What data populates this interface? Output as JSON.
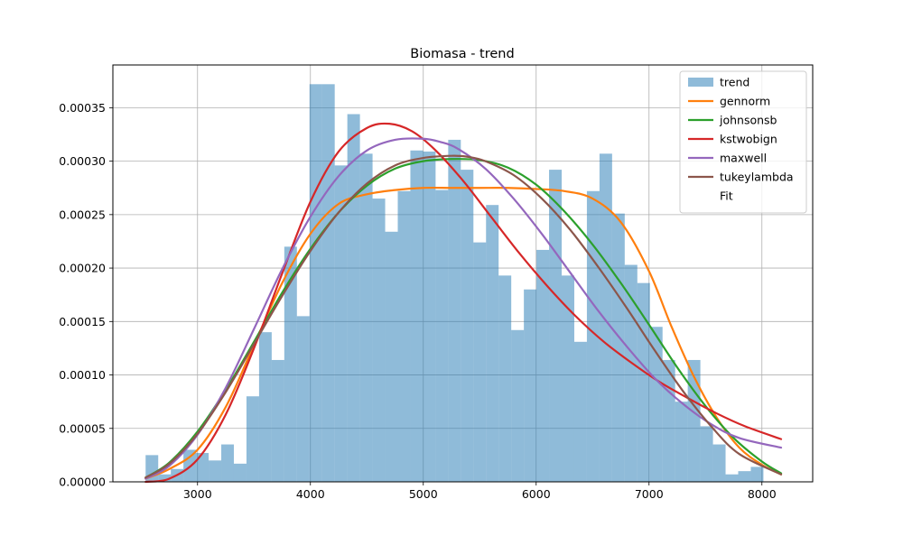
{
  "chart_data": {
    "type": "histogram",
    "title": "Biomasa - trend",
    "xlabel": "",
    "ylabel": "",
    "xlim": [
      2250,
      8450
    ],
    "ylim": [
      0,
      0.00039
    ],
    "x_ticks": [
      3000,
      4000,
      5000,
      6000,
      7000,
      8000
    ],
    "x_tick_labels": [
      "3000",
      "4000",
      "5000",
      "6000",
      "7000",
      "8000"
    ],
    "y_ticks": [
      0,
      5e-05,
      0.0001,
      0.00015,
      0.0002,
      0.00025,
      0.0003,
      0.00035
    ],
    "y_tick_labels": [
      "0.00000",
      "0.00005",
      "0.00010",
      "0.00015",
      "0.00020",
      "0.00025",
      "0.00030",
      "0.00035"
    ],
    "grid": true,
    "legend_position": "top-right",
    "histogram": {
      "name": "trend",
      "color": "#1f77b4",
      "alpha": 0.5,
      "bin_start": 2540,
      "bin_width": 111.7,
      "densities": [
        2.5e-05,
        7e-06,
        1.2e-05,
        3e-05,
        2.7e-05,
        2e-05,
        3.5e-05,
        1.7e-05,
        8e-05,
        0.00014,
        0.000114,
        0.00022,
        0.000155,
        0.000372,
        0.000372,
        0.000296,
        0.000344,
        0.000307,
        0.000265,
        0.000234,
        0.000272,
        0.00031,
        0.000309,
        0.000273,
        0.00032,
        0.000292,
        0.000224,
        0.000259,
        0.000193,
        0.000142,
        0.00018,
        0.000217,
        0.000292,
        0.000193,
        0.000131,
        0.000272,
        0.000307,
        0.000251,
        0.000203,
        0.000186,
        0.000145,
        0.000114,
        7.5e-05,
        0.000114,
        5.2e-05,
        3.5e-05,
        7e-06,
        1e-05,
        1.4e-05
      ]
    },
    "series": [
      {
        "name": "gennorm",
        "color": "#ff7f0e",
        "x": [
          2540,
          2750,
          3000,
          3250,
          3500,
          3750,
          4000,
          4250,
          4500,
          4750,
          5000,
          5250,
          5500,
          5750,
          6000,
          6250,
          6500,
          6750,
          7000,
          7200,
          7400,
          7600,
          7800,
          8000,
          8170
        ],
        "y": [
          3e-06,
          1.2e-05,
          3e-05,
          7e-05,
          0.000128,
          0.000186,
          0.000232,
          0.00026,
          0.000269,
          0.000273,
          0.000275,
          0.000275,
          0.000275,
          0.000275,
          0.000274,
          0.000272,
          0.000265,
          0.000243,
          0.000197,
          0.000145,
          9.8e-05,
          6e-05,
          3.2e-05,
          1.6e-05,
          7e-06
        ]
      },
      {
        "name": "johnsonsb",
        "color": "#2ca02c",
        "x": [
          2540,
          2750,
          3000,
          3250,
          3500,
          3750,
          4000,
          4250,
          4500,
          4750,
          5000,
          5250,
          5500,
          5750,
          6000,
          6250,
          6500,
          6750,
          7000,
          7250,
          7500,
          7750,
          8000,
          8170
        ],
        "y": [
          4e-06,
          1.8e-05,
          4.7e-05,
          8.6e-05,
          0.000131,
          0.000177,
          0.000218,
          0.000252,
          0.000277,
          0.000293,
          0.0003,
          0.000302,
          0.000301,
          0.000294,
          0.000278,
          0.000253,
          0.000222,
          0.000186,
          0.000147,
          0.000107,
          7.1e-05,
          4.1e-05,
          1.9e-05,
          8e-06
        ]
      },
      {
        "name": "kstwobign",
        "color": "#d62728",
        "x": [
          2540,
          2750,
          3000,
          3250,
          3500,
          3750,
          4000,
          4250,
          4500,
          4700,
          4900,
          5100,
          5350,
          5600,
          5850,
          6100,
          6350,
          6600,
          6850,
          7100,
          7350,
          7600,
          7850,
          8170
        ],
        "y": [
          0,
          3e-06,
          2.1e-05,
          6.3e-05,
          0.000125,
          0.000195,
          0.000262,
          0.000309,
          0.000331,
          0.000335,
          0.000328,
          0.000311,
          0.000282,
          0.000248,
          0.000214,
          0.000183,
          0.000155,
          0.000131,
          0.000111,
          9.3e-05,
          7.8e-05,
          6.4e-05,
          5.2e-05,
          4e-05
        ]
      },
      {
        "name": "maxwell",
        "color": "#9467bd",
        "x": [
          2540,
          2750,
          3000,
          3250,
          3500,
          3750,
          4000,
          4250,
          4500,
          4750,
          5000,
          5150,
          5300,
          5550,
          5800,
          6050,
          6300,
          6550,
          6800,
          7050,
          7300,
          7550,
          7800,
          8170
        ],
        "y": [
          3e-06,
          1.5e-05,
          4.4e-05,
          8.8e-05,
          0.000143,
          0.000199,
          0.000248,
          0.000286,
          0.00031,
          0.00032,
          0.000321,
          0.000318,
          0.000312,
          0.000293,
          0.000265,
          0.000232,
          0.000196,
          0.00016,
          0.000127,
          9.7e-05,
          7.3e-05,
          5.4e-05,
          4.1e-05,
          3.2e-05
        ]
      },
      {
        "name": "tukeylambda",
        "color": "#8c564b",
        "x": [
          2540,
          2750,
          3000,
          3250,
          3500,
          3750,
          4000,
          4250,
          4500,
          4750,
          5000,
          5250,
          5400,
          5550,
          5800,
          6050,
          6300,
          6550,
          6800,
          7050,
          7300,
          7550,
          7800,
          8170
        ],
        "y": [
          4e-06,
          1.7e-05,
          4.5e-05,
          8.4e-05,
          0.000129,
          0.000174,
          0.000216,
          0.000252,
          0.000279,
          0.000296,
          0.000303,
          0.000305,
          0.000304,
          0.0003,
          0.000287,
          0.000265,
          0.000236,
          0.000201,
          0.000163,
          0.000123,
          8.5e-05,
          5.2e-05,
          2.6e-05,
          7e-06
        ]
      }
    ],
    "extra_legend": [
      {
        "name": "Fit",
        "color": "#ffffff"
      }
    ]
  }
}
